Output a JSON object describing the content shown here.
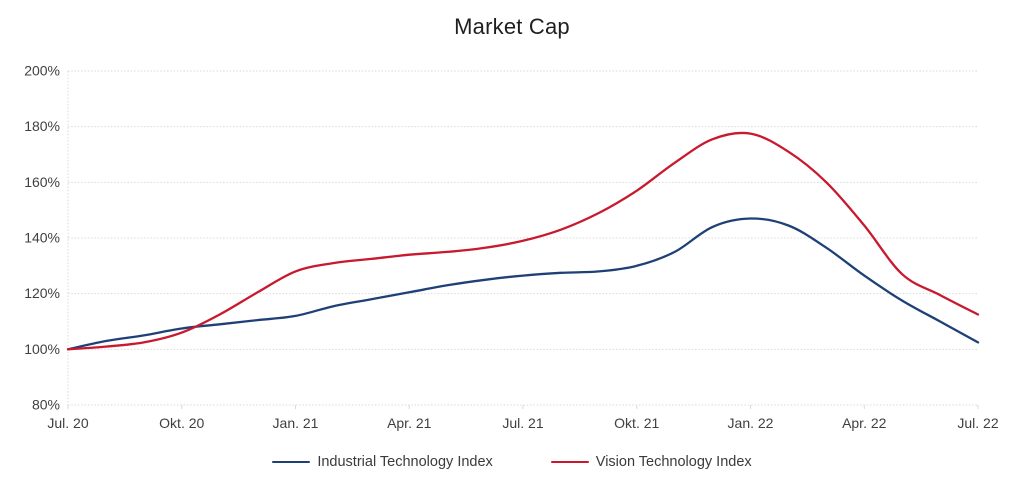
{
  "title": "Market Cap",
  "colors": {
    "industrial_line": "#1f4077",
    "vision_line": "#c8192e",
    "gridline": "#d9d9d9",
    "axis_text": "#404040",
    "title_text": "#1f1f1f"
  },
  "chart_data": {
    "type": "line",
    "title": "Market Cap",
    "xlabel": "",
    "ylabel": "",
    "ylim": [
      80,
      200
    ],
    "y_ticks": [
      200,
      180,
      160,
      140,
      120,
      100,
      80
    ],
    "y_tick_labels": [
      "200%",
      "180%",
      "160%",
      "140%",
      "120%",
      "100%",
      "80%"
    ],
    "x_tick_labels": [
      "Jul. 20",
      "Okt. 20",
      "Jan. 21",
      "Apr. 21",
      "Jul. 21",
      "Okt. 21",
      "Jan. 22",
      "Apr. 22",
      "Jul. 22"
    ],
    "points_per_series": 25,
    "x_spacing": "monthly, evenly spaced from Jul. 20 to Jul. 22",
    "grid": "horizontal only, light dotted",
    "legend_position": "bottom",
    "series": [
      {
        "name": "Industrial Technology Index",
        "color": "#1f4077",
        "values": [
          100,
          103,
          105,
          107.5,
          109,
          110.5,
          112,
          115.5,
          118,
          120.5,
          123,
          125,
          126.5,
          127.5,
          128,
          130,
          135,
          144,
          147,
          144.5,
          136.5,
          126.5,
          117.5,
          110,
          102.5
        ]
      },
      {
        "name": "Vision Technology Index",
        "color": "#c8192e",
        "values": [
          100,
          101,
          102.5,
          106,
          112.5,
          120.5,
          128,
          131,
          132.5,
          134,
          135,
          136.5,
          139,
          143,
          149,
          157,
          167,
          175.5,
          177.5,
          171,
          160,
          144.5,
          127,
          119.5,
          112.5
        ]
      }
    ]
  }
}
